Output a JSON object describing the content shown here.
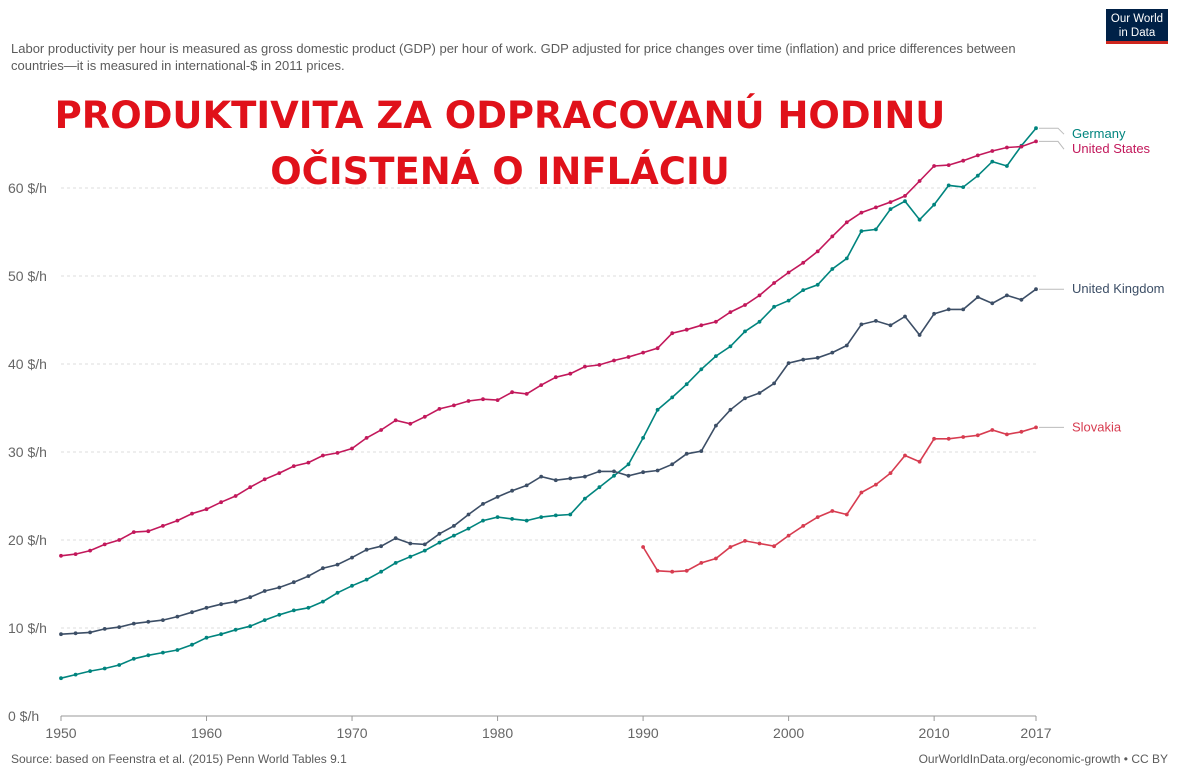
{
  "subtitle": "Labor productivity per hour is measured as gross domestic product (GDP) per hour of work. GDP adjusted for price changes over time (inflation) and price differences between countries—it is measured in international-$ in 2011 prices.",
  "headline": {
    "line1": "PRODUKTIVITA ZA ODPRACOVANÚ HODINU",
    "line2": "OČISTENÁ O INFLÁCIU"
  },
  "logo": {
    "line1": "Our World",
    "line2": "in Data"
  },
  "source": "Source: based on Feenstra et al. (2015) Penn World Tables 9.1",
  "credit": "OurWorldInData.org/economic-growth • CC BY",
  "chart_data": {
    "type": "line",
    "title": "",
    "xlabel": "",
    "ylabel": "",
    "xlim": [
      1950,
      2017
    ],
    "ylim": [
      0,
      65
    ],
    "grid": true,
    "y_ticks": [
      0,
      10,
      20,
      30,
      40,
      50,
      60
    ],
    "y_tick_labels": [
      "0 $/h",
      "10 $/h",
      "20 $/h",
      "30 $/h",
      "40 $/h",
      "50 $/h",
      "60 $/h"
    ],
    "x_ticks": [
      1950,
      1960,
      1970,
      1980,
      1990,
      2000,
      2010,
      2017
    ],
    "x_tick_labels": [
      "1950",
      "1960",
      "1970",
      "1980",
      "1990",
      "2000",
      "2010",
      "2017"
    ],
    "legend": "labels at line ends (right)",
    "series": [
      {
        "name": "Germany",
        "color": "#00847e",
        "start": 1950,
        "values": [
          4.3,
          4.7,
          5.1,
          5.4,
          5.8,
          6.5,
          6.9,
          7.2,
          7.5,
          8.1,
          8.9,
          9.3,
          9.8,
          10.2,
          10.9,
          11.5,
          12.0,
          12.3,
          13.0,
          14.0,
          14.8,
          15.5,
          16.4,
          17.4,
          18.1,
          18.8,
          19.7,
          20.5,
          21.3,
          22.2,
          22.6,
          22.4,
          22.2,
          22.6,
          22.8,
          22.9,
          24.7,
          26.0,
          27.3,
          28.6,
          31.6,
          34.8,
          36.2,
          37.7,
          39.4,
          40.9,
          42.0,
          43.7,
          44.8,
          46.5,
          47.2,
          48.4,
          49.0,
          50.8,
          52.0,
          55.1,
          55.3,
          57.6,
          58.5,
          56.4,
          58.1,
          60.3,
          60.1,
          61.4,
          63.0,
          62.5,
          64.8,
          66.8
        ]
      },
      {
        "name": "United States",
        "color": "#c2185b",
        "start": 1950,
        "values": [
          18.2,
          18.4,
          18.8,
          19.5,
          20.0,
          20.9,
          21.0,
          21.6,
          22.2,
          23.0,
          23.5,
          24.3,
          25.0,
          26.0,
          26.9,
          27.6,
          28.4,
          28.8,
          29.6,
          29.9,
          30.4,
          31.6,
          32.5,
          33.6,
          33.2,
          34.0,
          34.9,
          35.3,
          35.8,
          36.0,
          35.9,
          36.8,
          36.6,
          37.6,
          38.5,
          38.9,
          39.7,
          39.9,
          40.4,
          40.8,
          41.3,
          41.8,
          43.5,
          43.9,
          44.4,
          44.8,
          45.9,
          46.7,
          47.8,
          49.2,
          50.4,
          51.5,
          52.8,
          54.5,
          56.1,
          57.2,
          57.8,
          58.4,
          59.1,
          60.8,
          62.5,
          62.6,
          63.1,
          63.7,
          64.2,
          64.6,
          64.7,
          65.3
        ]
      },
      {
        "name": "United Kingdom",
        "color": "#3c4e66",
        "start": 1950,
        "values": [
          9.3,
          9.4,
          9.5,
          9.9,
          10.1,
          10.5,
          10.7,
          10.9,
          11.3,
          11.8,
          12.3,
          12.7,
          13.0,
          13.5,
          14.2,
          14.6,
          15.2,
          15.9,
          16.8,
          17.2,
          18.0,
          18.9,
          19.3,
          20.2,
          19.6,
          19.5,
          20.7,
          21.6,
          22.9,
          24.1,
          24.9,
          25.6,
          26.2,
          27.2,
          26.8,
          27.0,
          27.2,
          27.8,
          27.8,
          27.3,
          27.7,
          27.9,
          28.6,
          29.8,
          30.1,
          33.0,
          34.8,
          36.1,
          36.7,
          37.8,
          40.1,
          40.5,
          40.7,
          41.3,
          42.1,
          44.5,
          44.9,
          44.4,
          45.4,
          43.3,
          45.7,
          46.2,
          46.2,
          47.6,
          46.9,
          47.8,
          47.3,
          48.5
        ]
      },
      {
        "name": "Slovakia",
        "color": "#d73c50",
        "start": 1990,
        "values": [
          19.2,
          16.5,
          16.4,
          16.5,
          17.4,
          17.9,
          19.2,
          19.9,
          19.6,
          19.3,
          20.5,
          21.6,
          22.6,
          23.3,
          22.9,
          25.4,
          26.3,
          27.6,
          29.6,
          28.9,
          31.5,
          31.5,
          31.7,
          31.9,
          32.5,
          32.0,
          32.3,
          32.8
        ]
      }
    ]
  }
}
